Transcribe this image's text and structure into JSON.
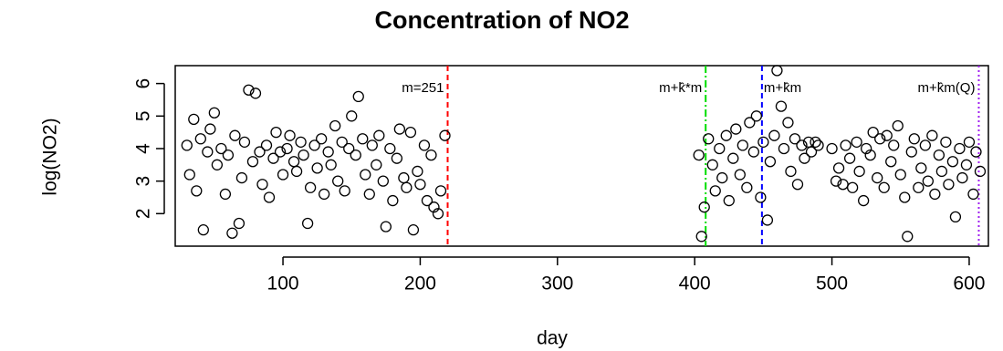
{
  "chart_data": {
    "type": "scatter",
    "title": "Concentration of NO2",
    "x_label": "day",
    "y_label": "log(NO2)",
    "x": [
      30,
      32,
      35,
      37,
      40,
      42,
      45,
      47,
      50,
      52,
      55,
      58,
      60,
      63,
      65,
      68,
      70,
      72,
      75,
      78,
      80,
      83,
      85,
      88,
      90,
      93,
      95,
      98,
      100,
      103,
      105,
      108,
      110,
      113,
      115,
      118,
      120,
      123,
      125,
      128,
      130,
      133,
      135,
      138,
      140,
      143,
      145,
      148,
      150,
      153,
      155,
      158,
      160,
      163,
      165,
      168,
      170,
      173,
      175,
      178,
      180,
      183,
      185,
      188,
      190,
      193,
      195,
      198,
      200,
      203,
      205,
      208,
      210,
      213,
      215,
      218,
      403,
      405,
      407,
      410,
      413,
      415,
      418,
      420,
      423,
      425,
      428,
      430,
      433,
      435,
      438,
      440,
      443,
      445,
      448,
      450,
      453,
      455,
      458,
      460,
      463,
      465,
      468,
      470,
      473,
      475,
      478,
      480,
      483,
      485,
      488,
      490,
      500,
      503,
      505,
      508,
      510,
      513,
      515,
      518,
      520,
      523,
      525,
      528,
      530,
      533,
      535,
      538,
      540,
      543,
      545,
      548,
      550,
      553,
      555,
      558,
      560,
      563,
      565,
      568,
      570,
      573,
      575,
      578,
      580,
      583,
      585,
      588,
      590,
      593,
      595,
      598,
      600,
      603,
      605,
      608
    ],
    "series": [
      {
        "color": "#000000",
        "values": [
          4.1,
          3.2,
          4.9,
          2.7,
          4.3,
          1.5,
          3.9,
          4.6,
          5.1,
          3.5,
          4.0,
          2.6,
          3.8,
          1.4,
          4.4,
          1.7,
          3.1,
          4.2,
          5.8,
          3.6,
          5.7,
          3.9,
          2.9,
          4.1,
          2.5,
          3.7,
          4.5,
          3.9,
          3.2,
          4.0,
          4.4,
          3.6,
          3.3,
          4.2,
          3.8,
          1.7,
          2.8,
          4.1,
          3.4,
          4.3,
          2.6,
          3.9,
          3.5,
          4.7,
          3.0,
          4.2,
          2.7,
          4.0,
          5.0,
          3.8,
          5.6,
          4.3,
          3.2,
          2.6,
          4.1,
          3.5,
          4.4,
          3.0,
          1.6,
          4.0,
          2.4,
          3.7,
          4.6,
          3.1,
          2.8,
          4.5,
          1.5,
          3.3,
          2.9,
          4.1,
          2.4,
          3.8,
          2.2,
          2.0,
          2.7,
          4.4,
          3.8,
          1.3,
          2.2,
          4.3,
          3.5,
          2.7,
          4.0,
          3.1,
          4.4,
          2.4,
          3.7,
          4.6,
          3.2,
          4.1,
          2.8,
          4.8,
          3.9,
          5.0,
          2.5,
          4.2,
          1.8,
          3.6,
          4.4,
          6.4,
          5.3,
          4.0,
          4.8,
          3.3,
          4.3,
          2.9,
          4.1,
          3.7,
          4.2,
          3.9,
          4.2,
          4.1,
          4.0,
          3.0,
          3.4,
          2.9,
          4.1,
          3.7,
          2.8,
          4.2,
          3.3,
          2.4,
          4.0,
          3.8,
          4.5,
          3.1,
          4.3,
          2.8,
          4.4,
          3.6,
          4.1,
          4.7,
          3.2,
          2.5,
          1.3,
          3.9,
          4.3,
          2.8,
          3.4,
          4.1,
          3.0,
          4.4,
          2.6,
          3.8,
          3.3,
          4.2,
          2.9,
          3.6,
          1.9,
          4.0,
          3.1,
          3.5,
          4.2,
          2.6,
          3.9,
          3.3
        ]
      }
    ],
    "vlines": [
      {
        "x": 220,
        "color": "#ff0000",
        "style": "dashed",
        "label": "m=251"
      },
      {
        "x": 408,
        "color": "#00dd00",
        "style": "dashdot",
        "label": "m+k̂*m"
      },
      {
        "x": 449,
        "color": "#0000ff",
        "style": "dashed",
        "label": "m+k̂m"
      },
      {
        "x": 607,
        "color": "#a020f0",
        "style": "dotted",
        "label": "m+k̂m(Q)"
      }
    ],
    "xlim": [
      21.5,
      614
    ],
    "ylim": [
      1,
      6.55
    ],
    "xticks": [
      100,
      200,
      300,
      400,
      500,
      600
    ],
    "yticks": [
      2,
      3,
      4,
      5,
      6
    ]
  }
}
